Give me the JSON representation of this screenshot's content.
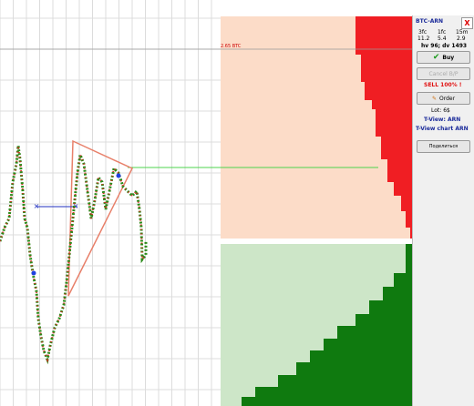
{
  "chart": {
    "price_line_label": "2.65 BTC"
  },
  "panel": {
    "pair": "BTC-ARN",
    "close": "X",
    "stats": {
      "headers": [
        "3fc",
        "1fc",
        "15m"
      ],
      "values": [
        "11.2",
        "5.4",
        "2.9"
      ]
    },
    "volume": "hv 96; dv 1493",
    "buttons": {
      "buy": "Buy",
      "cancel": "Cancel B/P",
      "order": "Order",
      "share": "Поделиться"
    },
    "sell": "SELL 100% !",
    "lot": "Lot: 6$",
    "tview": "T-View: ARN",
    "tview_chart": "T-View chart ARN"
  }
}
